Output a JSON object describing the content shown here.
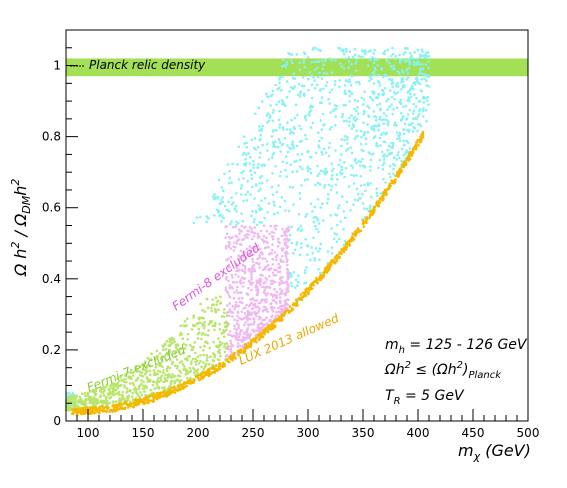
{
  "chart_data": {
    "type": "scatter",
    "xlabel_base": "m",
    "xlabel_sub": "χ",
    "xlabel_unit": " (GeV)",
    "ylabel_parts": {
      "omega": "Ω h",
      "sup": "2",
      "slash": " / Ω",
      "sub": "DM",
      "h": "h",
      "sup2": "2"
    },
    "xlim": [
      80,
      500
    ],
    "ylim": [
      0,
      1.1
    ],
    "x_ticks": [
      100,
      150,
      200,
      250,
      300,
      350,
      400,
      450,
      500
    ],
    "y_ticks": [
      0,
      0.2,
      0.4,
      0.6,
      0.8,
      1
    ],
    "y_tick_labels": [
      "0",
      "0.2",
      "0.4",
      "0.6",
      "0.8",
      "1"
    ],
    "planck_band": {
      "y_min": 0.97,
      "y_max": 1.02,
      "label": "Planck relic density",
      "color": "#99dd44"
    },
    "series": [
      {
        "name": "Fermi-7 excluded",
        "color": "#b8e66a",
        "x_range": [
          80,
          225
        ],
        "label_color": "#88cc33"
      },
      {
        "name": "Fermi-8 excluded",
        "color": "#f0b8f0",
        "x_range": [
          225,
          280
        ],
        "label_color": "#dd55dd"
      },
      {
        "name": "LUX 2013 allowed",
        "color": "#f5b800",
        "x_range": [
          80,
          405
        ],
        "label_color": "#e8a800"
      },
      {
        "color": "#88f2f2",
        "x_range": [
          80,
          410
        ]
      }
    ],
    "info_lines": {
      "mh": {
        "base": "m",
        "sub": "h",
        "rest": " = 125 - 126 GeV"
      },
      "omega": {
        "base": "Ωh",
        "sup": "2",
        "mid": " ≤ (Ωh",
        "sup2": "2",
        "close": ")",
        "sub": "Planck"
      },
      "tr": {
        "base": "T",
        "sub": "R",
        "rest": " = 5 GeV"
      }
    }
  }
}
